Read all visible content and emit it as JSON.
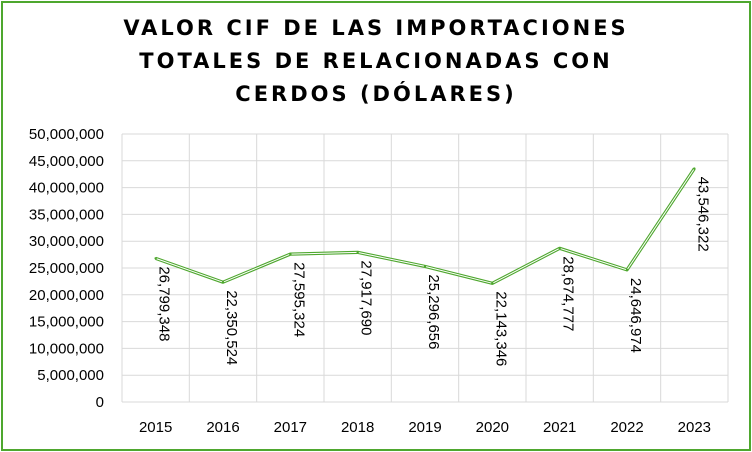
{
  "chart_data": {
    "type": "line",
    "title_lines": [
      "VALOR CIF DE LAS IMPORTACIONES",
      "TOTALES DE RELACIONADAS CON",
      "CERDOS (DÓLARES)"
    ],
    "categories": [
      "2015",
      "2016",
      "2017",
      "2018",
      "2019",
      "2020",
      "2021",
      "2022",
      "2023"
    ],
    "series": [
      {
        "values": [
          26799348,
          22350524,
          27595324,
          27917690,
          25296656,
          22143346,
          28674777,
          24646974,
          43546322
        ],
        "labels": [
          "26,799,348",
          "22,350,524",
          "27,595,324",
          "27,917,690",
          "25,296,656",
          "22,143,346",
          "28,674,777",
          "24,646,974",
          "43,546,322"
        ]
      }
    ],
    "ylim": [
      0,
      50000000
    ],
    "yticks": [
      "0",
      "5,000,000",
      "10,000,000",
      "15,000,000",
      "20,000,000",
      "25,000,000",
      "30,000,000",
      "35,000,000",
      "40,000,000",
      "45,000,000",
      "50,000,000"
    ],
    "grid": true,
    "legend": "none",
    "colors": {
      "line": "#4ea72e",
      "border": "#4ea72e",
      "grid": "#d9d9d9"
    }
  }
}
